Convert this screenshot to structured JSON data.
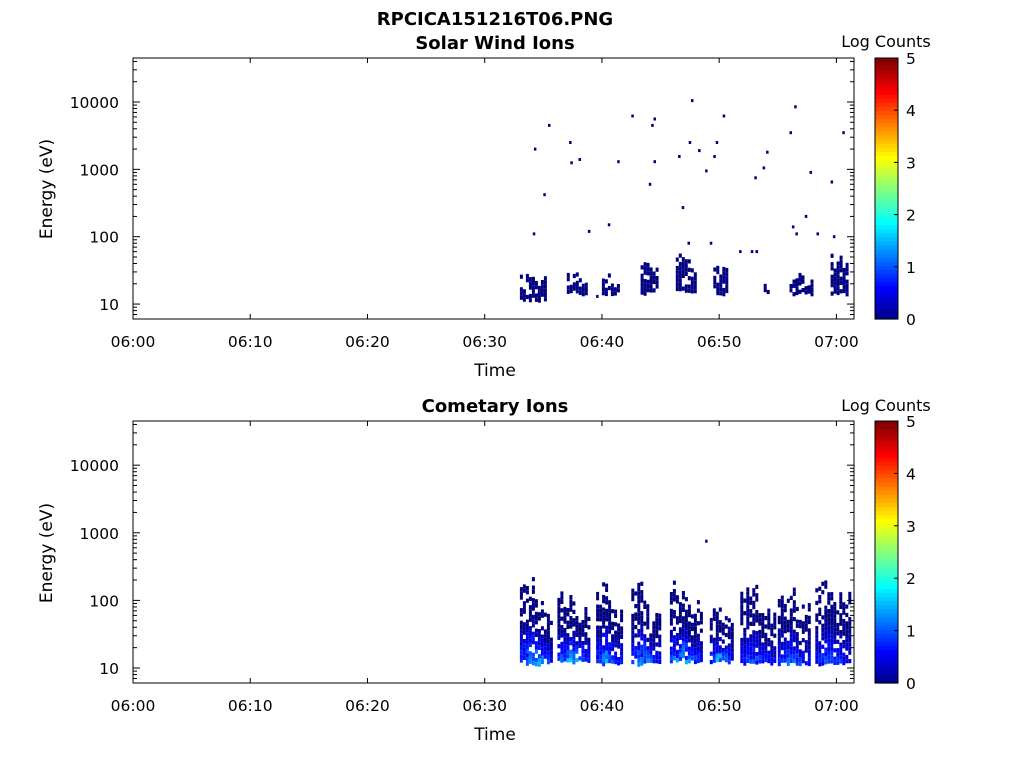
{
  "figure": {
    "title_line1": "RPCICA151216T06.PNG"
  },
  "colorbar": {
    "label": "Log Counts",
    "ticks": [
      "0",
      "1",
      "2",
      "3",
      "4",
      "5"
    ],
    "colormap": "jet"
  },
  "chart_data": [
    {
      "type": "heatmap",
      "title": "Solar Wind Ions",
      "xlabel": "Time",
      "ylabel": "Energy (eV)",
      "x_ticks": [
        "06:00",
        "06:10",
        "06:20",
        "06:30",
        "06:40",
        "06:50",
        "07:00"
      ],
      "y_ticks": [
        "10",
        "100",
        "1000",
        "10000"
      ],
      "y_scale": "log",
      "xlim_minutes": [
        0,
        61.5
      ],
      "ylim_eV": [
        6,
        45000
      ],
      "clim": [
        0,
        5
      ],
      "colorbar_label": "Log Counts",
      "points": [
        [
          34.2,
          2000,
          0
        ],
        [
          35.0,
          420,
          0
        ],
        [
          35.4,
          4500,
          0
        ],
        [
          34.1,
          110,
          0
        ],
        [
          37.2,
          2500,
          0
        ],
        [
          37.3,
          1250,
          0
        ],
        [
          38.0,
          1400,
          0
        ],
        [
          38.8,
          120,
          0
        ],
        [
          40.5,
          150,
          0
        ],
        [
          41.3,
          1300,
          0
        ],
        [
          42.5,
          6200,
          0
        ],
        [
          44.0,
          600,
          0
        ],
        [
          44.2,
          4500,
          0
        ],
        [
          44.4,
          5600,
          0
        ],
        [
          44.4,
          1300,
          0
        ],
        [
          46.5,
          1550,
          0
        ],
        [
          46.8,
          270,
          0
        ],
        [
          47.4,
          2500,
          0
        ],
        [
          47.6,
          10500,
          0
        ],
        [
          48.2,
          1900,
          0
        ],
        [
          48.8,
          950,
          0
        ],
        [
          49.5,
          1550,
          0
        ],
        [
          49.7,
          2500,
          0
        ],
        [
          50.3,
          6200,
          0
        ],
        [
          51.7,
          60,
          0
        ],
        [
          53.0,
          750,
          0
        ],
        [
          53.7,
          1050,
          0
        ],
        [
          54.0,
          1800,
          0
        ],
        [
          56.0,
          3500,
          0
        ],
        [
          56.4,
          8500,
          0
        ],
        [
          56.2,
          140,
          0
        ],
        [
          56.5,
          110,
          0
        ],
        [
          57.3,
          200,
          0
        ],
        [
          57.7,
          900,
          0
        ],
        [
          58.3,
          110,
          0
        ],
        [
          59.5,
          650,
          0
        ],
        [
          60.5,
          3500,
          0
        ],
        [
          59.7,
          100,
          0
        ],
        [
          34.5,
          14,
          0
        ],
        [
          39.5,
          13,
          0
        ],
        [
          47.3,
          80,
          0
        ],
        [
          49.2,
          80,
          0
        ],
        [
          52.7,
          60,
          0
        ],
        [
          53.1,
          60,
          0
        ]
      ],
      "bands": [
        {
          "t_start": 33.0,
          "t_end": 35.2,
          "e_low": 12,
          "e_high": 40,
          "max": 0.0
        },
        {
          "t_start": 37.0,
          "t_end": 38.6,
          "e_low": 15,
          "e_high": 35,
          "max": 0.0
        },
        {
          "t_start": 40.0,
          "t_end": 41.4,
          "e_low": 15,
          "e_high": 32,
          "max": 0.0
        },
        {
          "t_start": 43.3,
          "t_end": 44.8,
          "e_low": 15,
          "e_high": 55,
          "max": 0.0
        },
        {
          "t_start": 46.3,
          "t_end": 47.9,
          "e_low": 16,
          "e_high": 80,
          "max": 0.0
        },
        {
          "t_start": 49.5,
          "t_end": 50.6,
          "e_low": 15,
          "e_high": 60,
          "max": 0.0
        },
        {
          "t_start": 53.8,
          "t_end": 54.3,
          "e_low": 15,
          "e_high": 28,
          "max": 0.0
        },
        {
          "t_start": 56.0,
          "t_end": 57.8,
          "e_low": 15,
          "e_high": 35,
          "max": 0.0
        },
        {
          "t_start": 59.5,
          "t_end": 60.8,
          "e_low": 15,
          "e_high": 90,
          "max": 0.0
        }
      ]
    },
    {
      "type": "heatmap",
      "title": "Cometary Ions",
      "xlabel": "Time",
      "ylabel": "Energy (eV)",
      "x_ticks": [
        "06:00",
        "06:10",
        "06:20",
        "06:30",
        "06:40",
        "06:50",
        "07:00"
      ],
      "y_ticks": [
        "10",
        "100",
        "1000",
        "10000"
      ],
      "y_scale": "log",
      "xlim_minutes": [
        0,
        61.5
      ],
      "ylim_eV": [
        6,
        45000
      ],
      "clim": [
        0,
        5
      ],
      "colorbar_label": "Log Counts",
      "points": [
        [
          48.8,
          750,
          0
        ]
      ],
      "bands": [
        {
          "t_start": 33.0,
          "t_end": 35.8,
          "e_low": 12,
          "e_high": 380,
          "max": 1.6
        },
        {
          "t_start": 36.2,
          "t_end": 39.0,
          "e_low": 13,
          "e_high": 250,
          "max": 1.6
        },
        {
          "t_start": 39.5,
          "t_end": 41.8,
          "e_low": 12,
          "e_high": 320,
          "max": 1.5
        },
        {
          "t_start": 42.5,
          "t_end": 45.0,
          "e_low": 12,
          "e_high": 330,
          "max": 1.4
        },
        {
          "t_start": 45.8,
          "t_end": 48.4,
          "e_low": 13,
          "e_high": 320,
          "max": 1.5
        },
        {
          "t_start": 49.2,
          "t_end": 51.0,
          "e_low": 13,
          "e_high": 150,
          "max": 1.6
        },
        {
          "t_start": 51.8,
          "t_end": 54.8,
          "e_low": 12,
          "e_high": 430,
          "max": 1.1
        },
        {
          "t_start": 55.0,
          "t_end": 57.8,
          "e_low": 12,
          "e_high": 300,
          "max": 1.2
        },
        {
          "t_start": 58.2,
          "t_end": 61.2,
          "e_low": 12,
          "e_high": 400,
          "max": 1.1
        }
      ]
    }
  ]
}
